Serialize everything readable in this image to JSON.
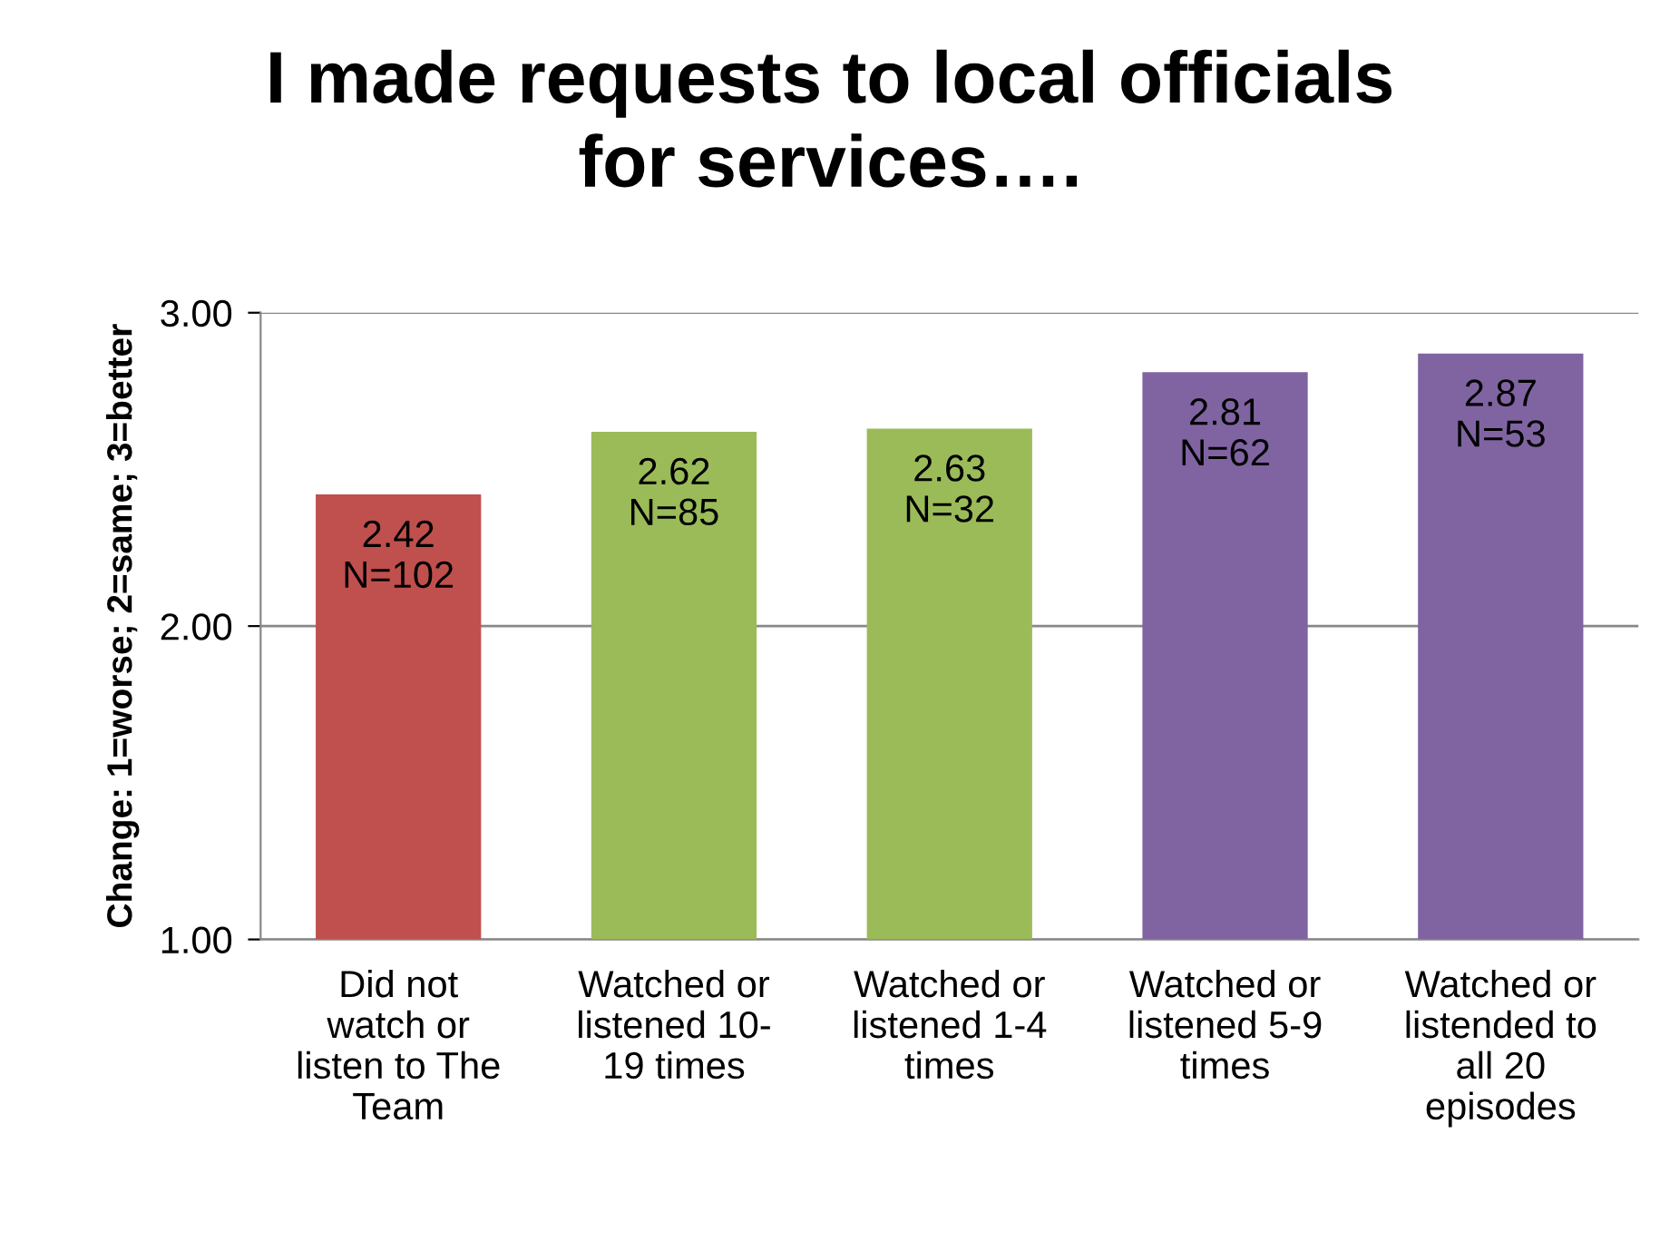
{
  "chart_data": {
    "type": "bar",
    "title": "I made requests to local officials\nfor services….",
    "ylabel": "Change: 1=worse; 2=same; 3=better",
    "categories": [
      "Did not\nwatch or\nlisten to The\nTeam",
      "Watched or\nlistened 10-\n19 times",
      "Watched or\nlistened 1-4\ntimes",
      "Watched or\nlistened 5-9\ntimes",
      "Watched or\nlistended to\nall 20\nepisodes"
    ],
    "values": [
      2.42,
      2.62,
      2.63,
      2.81,
      2.87
    ],
    "colors": [
      "#c0504d",
      "#9bbb59",
      "#9bbb59",
      "#8064a2",
      "#8064a2"
    ],
    "value_labels": [
      "2.42\nN=102",
      "2.62\nN=85",
      "2.63\nN=32",
      "2.81\nN=62",
      "2.87\nN=53"
    ],
    "ylim": [
      1,
      3
    ],
    "yticks": [
      {
        "value": 1,
        "label": "1.00"
      },
      {
        "value": 2,
        "label": "2.00"
      },
      {
        "value": 3,
        "label": "3.00"
      }
    ],
    "grid": "y",
    "legend": false
  }
}
